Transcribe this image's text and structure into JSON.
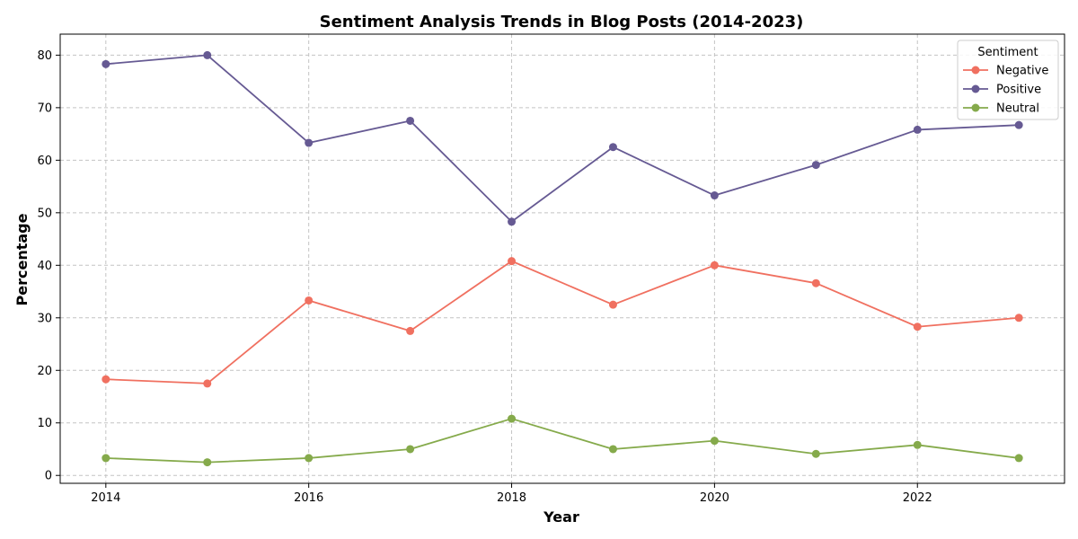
{
  "chart_data": {
    "type": "line",
    "title": "Sentiment Analysis Trends in Blog Posts (2014-2023)",
    "xlabel": "Year",
    "ylabel": "Percentage",
    "x": [
      2014,
      2015,
      2016,
      2017,
      2018,
      2019,
      2020,
      2021,
      2022,
      2023
    ],
    "xlim": [
      2013.55,
      2023.45
    ],
    "ylim": [
      -1.5,
      84
    ],
    "xticks": [
      "2014",
      "2016",
      "2018",
      "2020",
      "2022"
    ],
    "yticks": [
      "0",
      "10",
      "20",
      "30",
      "40",
      "50",
      "60",
      "70",
      "80"
    ],
    "grid": true,
    "legend": {
      "title": "Sentiment",
      "placement": "top-right"
    },
    "series": [
      {
        "name": "Negative",
        "color": "#f07060",
        "values": [
          18.3,
          17.5,
          33.3,
          27.5,
          40.8,
          32.5,
          40.0,
          36.6,
          28.3,
          30.0
        ]
      },
      {
        "name": "Positive",
        "color": "#665a93",
        "values": [
          78.3,
          80.0,
          63.3,
          67.5,
          48.3,
          62.5,
          53.3,
          59.1,
          65.8,
          66.7
        ]
      },
      {
        "name": "Neutral",
        "color": "#85aa4b",
        "values": [
          3.3,
          2.5,
          3.3,
          5.0,
          10.8,
          5.0,
          6.6,
          4.1,
          5.8,
          3.3
        ]
      }
    ]
  }
}
